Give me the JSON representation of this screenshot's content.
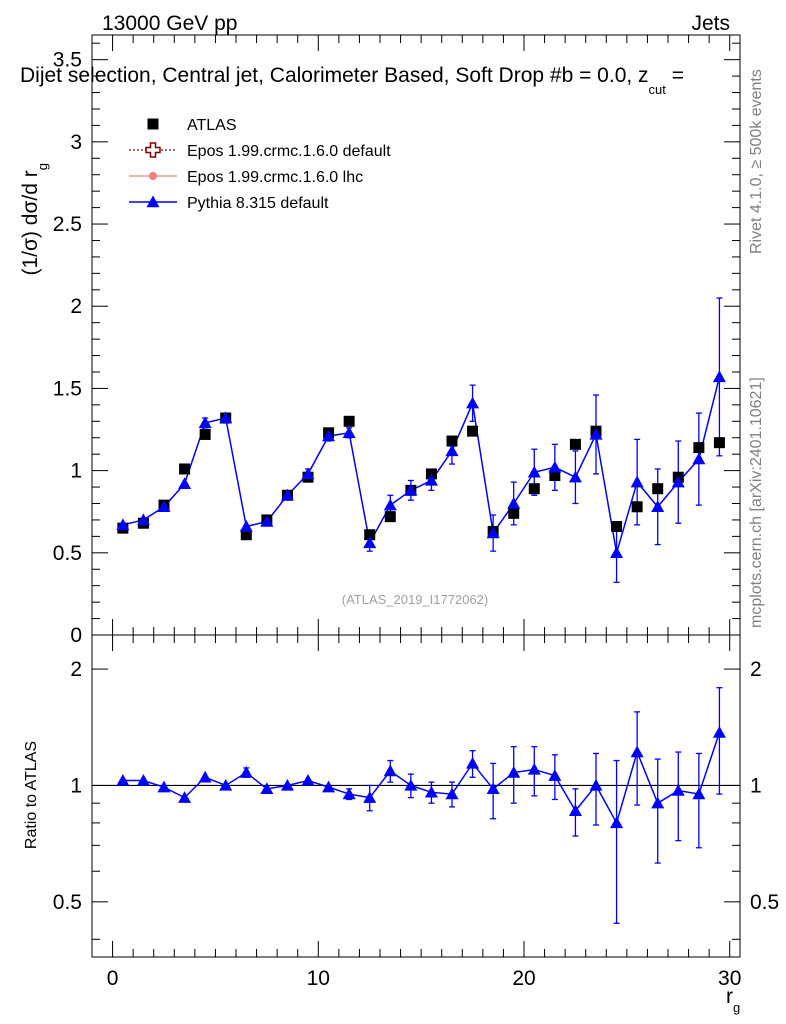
{
  "header": {
    "energy": "13000 GeV pp",
    "category": "Jets",
    "title": "Dijet selection, Central jet, Calorimeter Based, Soft Drop #b = 0.0, z",
    "title_sub": "cut",
    "title_tail": " = "
  },
  "side_labels": {
    "rivet": "Rivet 4.1.0, ≥ 500k events",
    "mcplots": "mcplots.cern.ch [arXiv:2401.10621]"
  },
  "watermark": "(ATLAS_2019_I1772062)",
  "axes": {
    "top_ylabel": "(1/σ) dσ/d r",
    "top_ylabel_sub": "g",
    "bottom_ylabel": "Ratio to ATLAS",
    "xlabel": "r",
    "xlabel_sub": "g"
  },
  "legend": [
    {
      "label": "ATLAS",
      "color": "#000000",
      "marker": "square"
    },
    {
      "label": "Epos 1.99.crmc.1.6.0 default",
      "color": "#7f0000",
      "marker": "open-cross"
    },
    {
      "label": "Epos 1.99.crmc.1.6.0 lhc",
      "color": "#f08080",
      "marker": "circle"
    },
    {
      "label": "Pythia 8.315 default",
      "color": "#0000ff",
      "marker": "triangle"
    }
  ],
  "chart_data": [
    {
      "type": "scatter",
      "panel": "main",
      "xlim": [
        -1,
        30.5
      ],
      "ylim": [
        0,
        3.65
      ],
      "xticks": [
        0,
        10,
        20,
        30
      ],
      "yticks": [
        0,
        0.5,
        1,
        1.5,
        2,
        2.5,
        3,
        3.5
      ],
      "ytick_labels": [
        "0",
        "0.5",
        "1",
        "1.5",
        "2",
        "2.5",
        "3",
        "3.5"
      ],
      "x": [
        0.5,
        1.5,
        2.5,
        3.5,
        4.5,
        5.5,
        6.5,
        7.5,
        8.5,
        9.5,
        10.5,
        11.5,
        12.5,
        13.5,
        14.5,
        15.5,
        16.5,
        17.5,
        18.5,
        19.5,
        20.5,
        21.5,
        22.5,
        23.5,
        24.5,
        25.5,
        26.5,
        27.5,
        28.5,
        29.5
      ],
      "series": [
        {
          "name": "ATLAS",
          "values": [
            0.65,
            0.68,
            0.79,
            1.01,
            1.22,
            1.32,
            0.61,
            0.7,
            0.85,
            0.96,
            1.23,
            1.3,
            0.61,
            0.72,
            0.88,
            0.98,
            1.18,
            1.24,
            0.63,
            0.74,
            0.89,
            0.97,
            1.16,
            1.24,
            0.66,
            0.78,
            0.89,
            0.96,
            1.14,
            1.17
          ]
        },
        {
          "name": "Pythia 8.315 default",
          "values": [
            0.67,
            0.7,
            0.78,
            0.92,
            1.29,
            1.32,
            0.66,
            0.69,
            0.85,
            0.98,
            1.21,
            1.23,
            0.56,
            0.79,
            0.88,
            0.94,
            1.12,
            1.41,
            0.62,
            0.8,
            0.99,
            1.02,
            0.96,
            1.22,
            0.5,
            0.93,
            0.78,
            0.93,
            1.07,
            1.57
          ],
          "errors": [
            0.02,
            0.02,
            0.02,
            0.02,
            0.03,
            0.03,
            0.02,
            0.02,
            0.02,
            0.03,
            0.03,
            0.03,
            0.05,
            0.06,
            0.06,
            0.06,
            0.08,
            0.11,
            0.11,
            0.13,
            0.14,
            0.14,
            0.16,
            0.24,
            0.18,
            0.26,
            0.23,
            0.25,
            0.28,
            0.48
          ]
        }
      ]
    },
    {
      "type": "scatter",
      "panel": "ratio",
      "xlim": [
        -1,
        30.5
      ],
      "ylim": [
        0.36,
        2.45
      ],
      "xticks": [
        0,
        10,
        20,
        30
      ],
      "yticks": [
        0.5,
        1,
        2
      ],
      "ytick_labels": [
        "0.5",
        "1",
        "2"
      ],
      "reference_line": 1,
      "x": [
        0.5,
        1.5,
        2.5,
        3.5,
        4.5,
        5.5,
        6.5,
        7.5,
        8.5,
        9.5,
        10.5,
        11.5,
        12.5,
        13.5,
        14.5,
        15.5,
        16.5,
        17.5,
        18.5,
        19.5,
        20.5,
        21.5,
        22.5,
        23.5,
        24.5,
        25.5,
        26.5,
        27.5,
        28.5,
        29.5
      ],
      "series": [
        {
          "name": "Pythia 8.315 default",
          "values": [
            1.03,
            1.03,
            0.99,
            0.93,
            1.05,
            1.0,
            1.08,
            0.98,
            1.0,
            1.03,
            0.99,
            0.95,
            0.93,
            1.09,
            1.0,
            0.96,
            0.95,
            1.14,
            0.98,
            1.08,
            1.1,
            1.06,
            0.86,
            1.0,
            0.8,
            1.22,
            0.9,
            0.97,
            0.95,
            1.37
          ],
          "errors": [
            0.02,
            0.02,
            0.02,
            0.02,
            0.02,
            0.02,
            0.03,
            0.02,
            0.02,
            0.02,
            0.02,
            0.03,
            0.07,
            0.07,
            0.07,
            0.06,
            0.07,
            0.09,
            0.16,
            0.18,
            0.16,
            0.14,
            0.12,
            0.21,
            0.36,
            0.33,
            0.27,
            0.25,
            0.26,
            0.42
          ]
        }
      ]
    }
  ]
}
